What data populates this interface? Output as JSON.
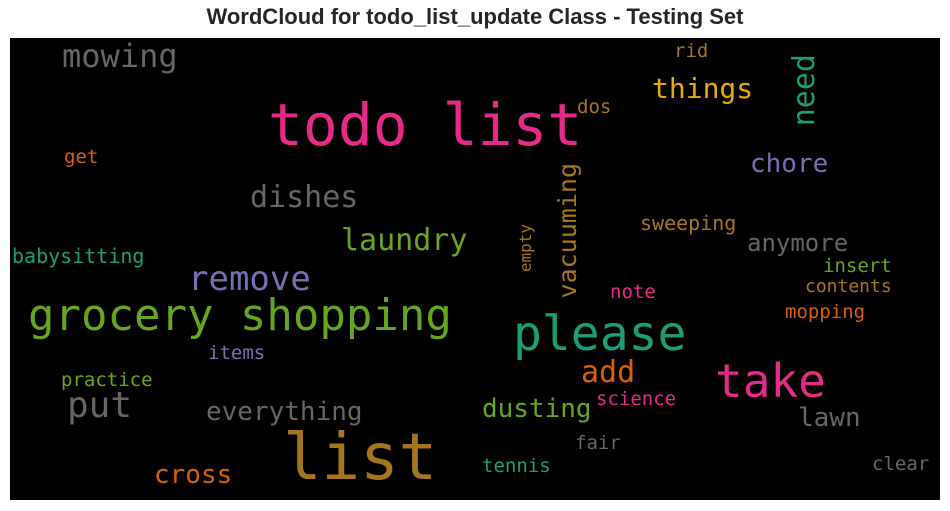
{
  "chart_data": {
    "type": "wordcloud",
    "title": "WordCloud for todo_list_update Class - Testing Set",
    "background": "#000000",
    "words": [
      {
        "text": "todo list",
        "color": "#e7298a"
      },
      {
        "text": "list",
        "color": "#a6761d"
      },
      {
        "text": "grocery shopping",
        "color": "#66a61e"
      },
      {
        "text": "please",
        "color": "#1b9e77"
      },
      {
        "text": "take",
        "color": "#e7298a"
      },
      {
        "text": "remove",
        "color": "#7570b3"
      },
      {
        "text": "put",
        "color": "#666666"
      },
      {
        "text": "mowing",
        "color": "#666666"
      },
      {
        "text": "dishes",
        "color": "#666666"
      },
      {
        "text": "laundry",
        "color": "#66a61e"
      },
      {
        "text": "need",
        "color": "#1b9e77"
      },
      {
        "text": "things",
        "color": "#e6ab02"
      },
      {
        "text": "chore",
        "color": "#7570b3"
      },
      {
        "text": "vacuuming",
        "color": "#a6761d"
      },
      {
        "text": "anymore",
        "color": "#666666"
      },
      {
        "text": "everything",
        "color": "#666666"
      },
      {
        "text": "dusting",
        "color": "#66a61e"
      },
      {
        "text": "add",
        "color": "#d95f02"
      },
      {
        "text": "cross",
        "color": "#d95f02"
      },
      {
        "text": "lawn",
        "color": "#666666"
      },
      {
        "text": "babysitting",
        "color": "#1b9e77"
      },
      {
        "text": "sweeping",
        "color": "#a6761d"
      },
      {
        "text": "empty",
        "color": "#a6761d"
      },
      {
        "text": "insert",
        "color": "#66a61e"
      },
      {
        "text": "contents",
        "color": "#a6761d"
      },
      {
        "text": "mopping",
        "color": "#d95f02"
      },
      {
        "text": "note",
        "color": "#e7298a"
      },
      {
        "text": "items",
        "color": "#7570b3"
      },
      {
        "text": "practice",
        "color": "#66a61e"
      },
      {
        "text": "science",
        "color": "#e7298a"
      },
      {
        "text": "fair",
        "color": "#666666"
      },
      {
        "text": "tennis",
        "color": "#1b9e77"
      },
      {
        "text": "clear",
        "color": "#666666"
      },
      {
        "text": "get",
        "color": "#d95f02"
      },
      {
        "text": "dos",
        "color": "#a6761d"
      },
      {
        "text": "rid",
        "color": "#a6761d"
      }
    ]
  }
}
